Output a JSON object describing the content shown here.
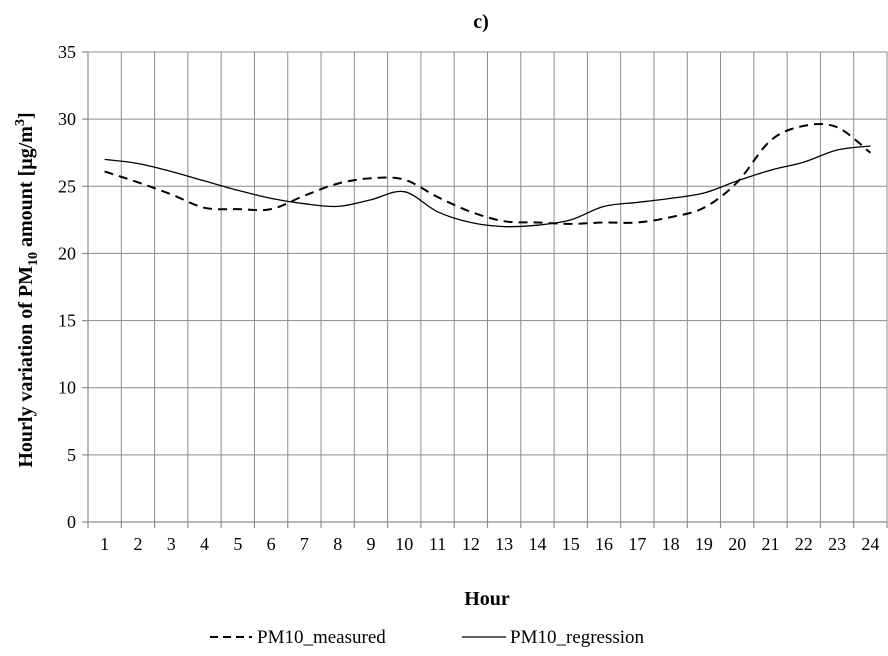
{
  "chart_data": {
    "type": "line",
    "title": "c)",
    "xlabel": "Hour",
    "ylabel_parts": [
      "Hourly variation of PM",
      "10",
      " amount [µg/m",
      "3",
      "]"
    ],
    "categories": [
      "1",
      "2",
      "3",
      "4",
      "5",
      "6",
      "7",
      "8",
      "9",
      "10",
      "11",
      "12",
      "13",
      "14",
      "15",
      "16",
      "17",
      "18",
      "19",
      "20",
      "21",
      "22",
      "23",
      "24"
    ],
    "ylim": [
      0,
      35
    ],
    "yticks": [
      0,
      5,
      10,
      15,
      20,
      25,
      30,
      35
    ],
    "grid": true,
    "legend_position": "bottom",
    "series": [
      {
        "name": "PM10_measured",
        "style": "dashed",
        "color": "#000000",
        "values": [
          26.1,
          25.3,
          24.4,
          23.4,
          23.3,
          23.3,
          24.3,
          25.2,
          25.6,
          25.5,
          24.2,
          23.1,
          22.4,
          22.3,
          22.2,
          22.3,
          22.3,
          22.7,
          23.4,
          25.3,
          28.4,
          29.5,
          29.4,
          27.5
        ]
      },
      {
        "name": "PM10_regression",
        "style": "solid",
        "color": "#000000",
        "values": [
          27.0,
          26.7,
          26.1,
          25.4,
          24.7,
          24.1,
          23.7,
          23.5,
          24.0,
          24.6,
          23.1,
          22.3,
          22.0,
          22.1,
          22.5,
          23.5,
          23.8,
          24.1,
          24.5,
          25.4,
          26.2,
          26.8,
          27.7,
          28.0
        ]
      }
    ]
  }
}
